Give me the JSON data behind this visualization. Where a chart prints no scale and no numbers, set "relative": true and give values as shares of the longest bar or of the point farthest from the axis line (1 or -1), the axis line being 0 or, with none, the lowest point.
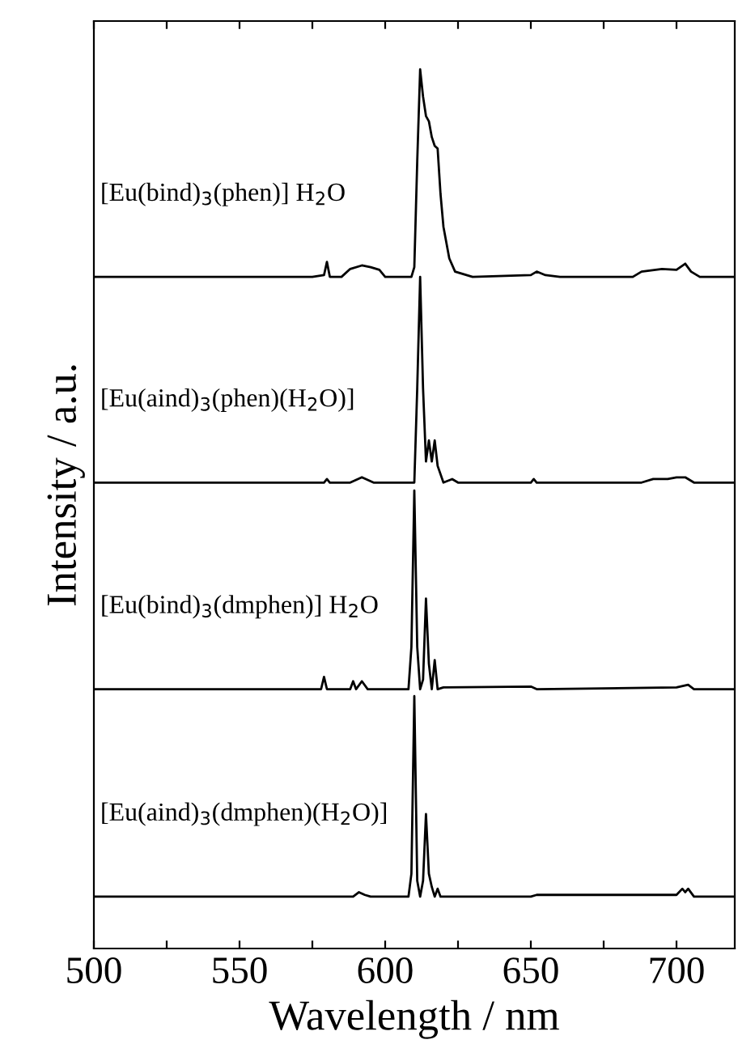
{
  "chart_data": {
    "type": "line",
    "relative": true,
    "xlabel": "Wavelength / nm",
    "ylabel": "Intensity / a.u.",
    "xlim": [
      500,
      720
    ],
    "xticks": [
      500,
      {
        "value": 525,
        "label": null
      },
      550,
      {
        "value": 575,
        "label": null
      },
      600,
      {
        "value": 625,
        "label": null
      },
      650,
      {
        "value": 675,
        "label": null
      },
      700
    ],
    "tick_labels": "x",
    "grid": false,
    "legend": false,
    "marker": "none",
    "line_style": "solid",
    "series": [
      {
        "name": "[Eu(bind)$_{3}$(phen)] H$_{2}$O",
        "color": "#000000",
        "x": [
          500,
          575,
          579,
          580,
          581,
          585,
          588,
          592,
          595,
          598,
          600,
          609,
          610,
          611,
          612,
          613,
          614,
          615,
          616,
          617,
          618,
          619,
          620,
          621,
          622,
          624,
          630,
          650,
          652,
          655,
          660,
          685,
          688,
          695,
          700,
          703,
          705,
          708,
          720
        ],
        "values": [
          0.764,
          0.764,
          0.766,
          0.781,
          0.764,
          0.764,
          0.773,
          0.777,
          0.775,
          0.772,
          0.764,
          0.764,
          0.775,
          0.895,
          1.0,
          0.969,
          0.947,
          0.941,
          0.923,
          0.913,
          0.91,
          0.858,
          0.821,
          0.803,
          0.785,
          0.77,
          0.764,
          0.766,
          0.77,
          0.766,
          0.764,
          0.764,
          0.77,
          0.773,
          0.772,
          0.779,
          0.77,
          0.764,
          0.764
        ]
      },
      {
        "name": "[Eu(aind)$_{3}$(phen)(H$_{2}$O)]",
        "color": "#000000",
        "x": [
          500,
          579,
          580,
          581,
          588,
          592,
          596,
          610,
          611,
          612,
          613,
          614,
          615,
          616,
          617,
          618,
          620,
          623,
          625,
          650,
          651,
          652,
          688,
          692,
          697,
          700,
          703,
          706,
          720
        ],
        "values": [
          0.53,
          0.53,
          0.534,
          0.53,
          0.53,
          0.536,
          0.53,
          0.53,
          0.637,
          0.764,
          0.637,
          0.554,
          0.578,
          0.554,
          0.578,
          0.549,
          0.53,
          0.534,
          0.53,
          0.53,
          0.534,
          0.53,
          0.53,
          0.534,
          0.534,
          0.536,
          0.536,
          0.53,
          0.53
        ]
      },
      {
        "name": "[Eu(bind)$_{3}$(dmphen)] H$_{2}$O",
        "color": "#000000",
        "x": [
          500,
          578,
          579,
          580,
          588,
          589,
          590,
          592,
          594,
          608,
          609,
          610,
          611,
          612,
          613,
          614,
          615,
          616,
          617,
          618,
          620,
          650,
          652,
          700,
          704,
          706,
          720
        ],
        "values": [
          0.295,
          0.295,
          0.309,
          0.295,
          0.295,
          0.304,
          0.295,
          0.304,
          0.295,
          0.295,
          0.343,
          0.521,
          0.343,
          0.295,
          0.306,
          0.398,
          0.324,
          0.295,
          0.328,
          0.295,
          0.297,
          0.298,
          0.295,
          0.297,
          0.3,
          0.295,
          0.295
        ]
      },
      {
        "name": "[Eu(aind)$_{3}$(dmphen)(H$_{2}$O)]",
        "color": "#000000",
        "x": [
          500,
          589,
          591,
          593,
          595,
          608,
          609,
          610,
          611,
          612,
          613,
          614,
          615,
          616,
          617,
          618,
          619,
          650,
          652,
          700,
          702,
          703,
          704,
          706,
          720
        ],
        "values": [
          0.059,
          0.059,
          0.064,
          0.061,
          0.059,
          0.059,
          0.085,
          0.287,
          0.077,
          0.059,
          0.077,
          0.153,
          0.085,
          0.07,
          0.059,
          0.068,
          0.059,
          0.059,
          0.061,
          0.061,
          0.068,
          0.064,
          0.068,
          0.059,
          0.059
        ]
      }
    ]
  }
}
